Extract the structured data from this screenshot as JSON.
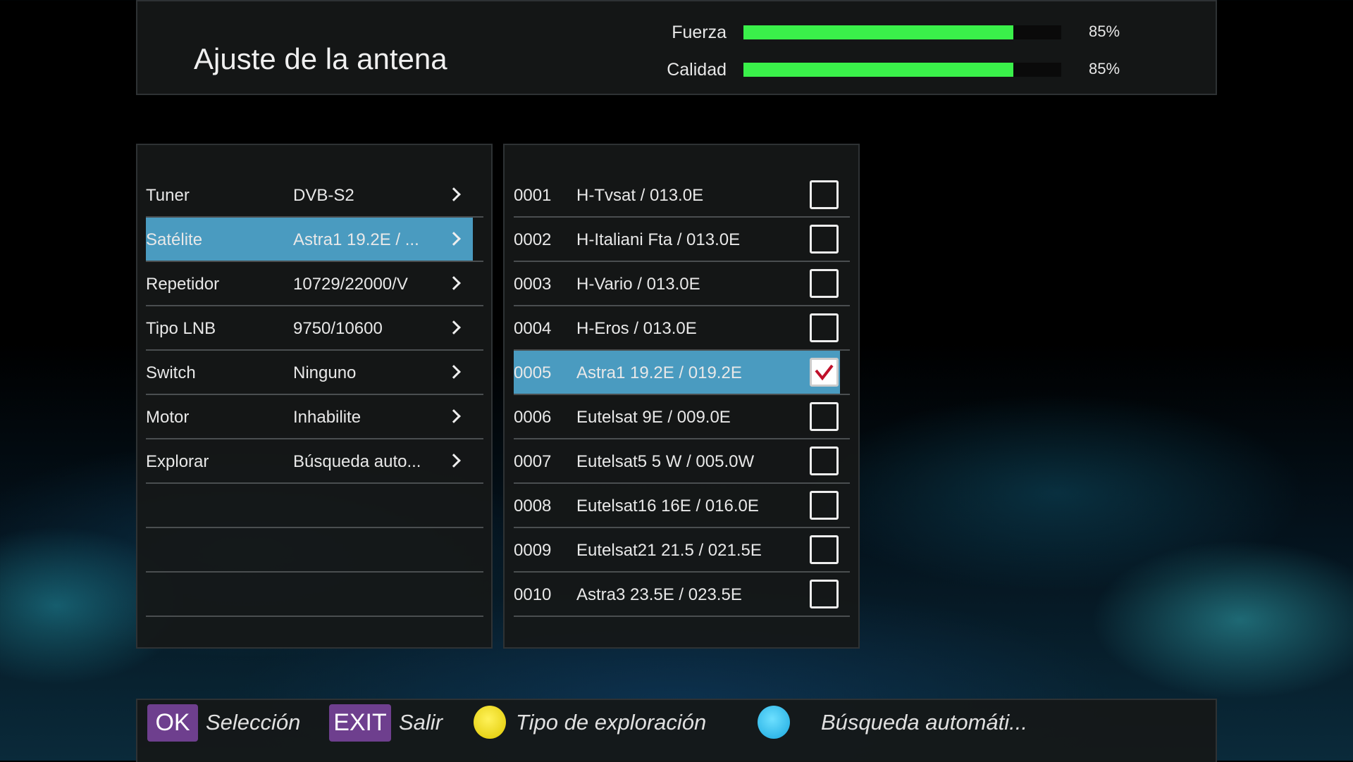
{
  "header": {
    "title": "Ajuste de la antena",
    "signals": [
      {
        "label": "Fuerza",
        "percent": 85,
        "text": "85%"
      },
      {
        "label": "Calidad",
        "percent": 85,
        "text": "85%"
      }
    ],
    "bar_color": "#3af04a"
  },
  "settings": {
    "selected_index": 1,
    "items": [
      {
        "label": "Tuner",
        "value": "DVB-S2"
      },
      {
        "label": "Satélite",
        "value": "Astra1 19.2E / ..."
      },
      {
        "label": "Repetidor",
        "value": "10729/22000/V"
      },
      {
        "label": "Tipo LNB",
        "value": "9750/10600"
      },
      {
        "label": "Switch",
        "value": "Ninguno"
      },
      {
        "label": "Motor",
        "value": "Inhabilite"
      },
      {
        "label": "Explorar",
        "value": "Búsqueda auto..."
      }
    ]
  },
  "satellites": {
    "selected_index": 4,
    "items": [
      {
        "num": "0001",
        "name": "H-Tvsat / 013.0E",
        "checked": false
      },
      {
        "num": "0002",
        "name": "H-Italiani Fta / 013.0E",
        "checked": false
      },
      {
        "num": "0003",
        "name": "H-Vario / 013.0E",
        "checked": false
      },
      {
        "num": "0004",
        "name": "H-Eros / 013.0E",
        "checked": false
      },
      {
        "num": "0005",
        "name": "Astra1 19.2E / 019.2E",
        "checked": true
      },
      {
        "num": "0006",
        "name": "Eutelsat 9E / 009.0E",
        "checked": false
      },
      {
        "num": "0007",
        "name": "Eutelsat5 5 W / 005.0W",
        "checked": false
      },
      {
        "num": "0008",
        "name": "Eutelsat16 16E / 016.0E",
        "checked": false
      },
      {
        "num": "0009",
        "name": "Eutelsat21 21.5 / 021.5E",
        "checked": false
      },
      {
        "num": "0010",
        "name": "Astra3 23.5E / 023.5E",
        "checked": false
      }
    ]
  },
  "footer": {
    "ok_key": "OK",
    "ok_label": "Selección",
    "exit_key": "EXIT",
    "exit_label": "Salir",
    "yellow_label": "Tipo de exploración",
    "blue_label": "Búsqueda automáti...",
    "highlight_color": "#4a9bc0",
    "key_color": "#6e3f8e"
  }
}
